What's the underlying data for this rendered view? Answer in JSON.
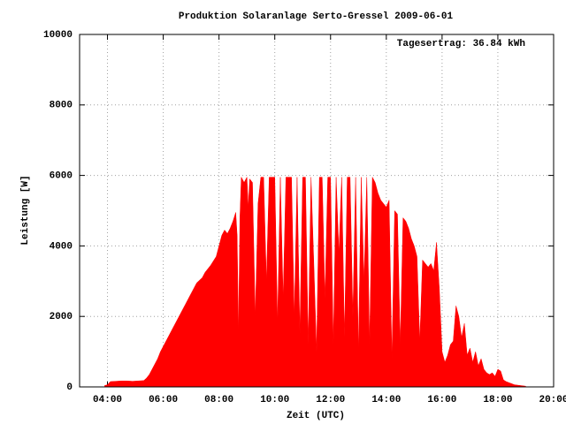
{
  "chart_data": {
    "type": "area",
    "title": "Produktion Solaranlage Serto-Gressel 2009-06-01",
    "annotation": "Tagesertrag: 36.84 kWh",
    "x_label": "Zeit (UTC)",
    "y_label": "Leistung [W]",
    "color": "#ff0000",
    "grid": true,
    "xlim": [
      3,
      20
    ],
    "ylim": [
      0,
      10000
    ],
    "xticks": [
      {
        "value": 4,
        "label": "04:00"
      },
      {
        "value": 6,
        "label": "06:00"
      },
      {
        "value": 8,
        "label": "08:00"
      },
      {
        "value": 10,
        "label": "10:00"
      },
      {
        "value": 12,
        "label": "12:00"
      },
      {
        "value": 14,
        "label": "14:00"
      },
      {
        "value": 16,
        "label": "16:00"
      },
      {
        "value": 18,
        "label": "18:00"
      },
      {
        "value": 20,
        "label": "20:00"
      }
    ],
    "yticks": [
      0,
      2000,
      4000,
      6000,
      8000,
      10000
    ],
    "x": [
      3.9,
      4.0,
      4.1,
      4.3,
      4.5,
      4.7,
      4.9,
      5.1,
      5.3,
      5.4,
      5.5,
      5.6,
      5.7,
      5.8,
      5.9,
      6.0,
      6.2,
      6.4,
      6.6,
      6.8,
      7.0,
      7.2,
      7.4,
      7.5,
      7.7,
      7.9,
      8.0,
      8.1,
      8.2,
      8.3,
      8.4,
      8.5,
      8.6,
      8.65,
      8.7,
      8.75,
      8.8,
      8.9,
      9.0,
      9.05,
      9.1,
      9.2,
      9.3,
      9.4,
      9.5,
      9.6,
      9.7,
      9.8,
      9.9,
      10.0,
      10.1,
      10.2,
      10.3,
      10.4,
      10.5,
      10.6,
      10.7,
      10.8,
      10.9,
      11.0,
      11.1,
      11.2,
      11.3,
      11.4,
      11.5,
      11.6,
      11.7,
      11.8,
      11.9,
      12.0,
      12.1,
      12.2,
      12.3,
      12.4,
      12.5,
      12.6,
      12.7,
      12.8,
      12.9,
      13.0,
      13.1,
      13.2,
      13.3,
      13.4,
      13.5,
      13.6,
      13.7,
      13.8,
      13.9,
      14.0,
      14.1,
      14.2,
      14.3,
      14.4,
      14.5,
      14.6,
      14.7,
      14.8,
      14.9,
      15.0,
      15.1,
      15.2,
      15.3,
      15.4,
      15.5,
      15.6,
      15.7,
      15.8,
      15.9,
      16.0,
      16.1,
      16.2,
      16.3,
      16.4,
      16.5,
      16.6,
      16.7,
      16.8,
      16.9,
      17.0,
      17.1,
      17.2,
      17.3,
      17.4,
      17.5,
      17.6,
      17.7,
      17.8,
      17.9,
      18.0,
      18.1,
      18.2,
      18.3,
      18.4,
      18.6,
      18.8,
      19.0
    ],
    "values": [
      40,
      60,
      150,
      160,
      170,
      170,
      160,
      170,
      180,
      250,
      350,
      500,
      650,
      800,
      1000,
      1150,
      1450,
      1750,
      2050,
      2350,
      2650,
      2950,
      3100,
      3250,
      3450,
      3700,
      4000,
      4300,
      4450,
      4350,
      4500,
      4700,
      4950,
      4300,
      1500,
      4800,
      5950,
      5800,
      5950,
      5100,
      5900,
      5800,
      2000,
      5200,
      5950,
      5950,
      3000,
      5950,
      5950,
      5950,
      1800,
      5950,
      2500,
      5950,
      5950,
      5950,
      2000,
      5950,
      1500,
      5950,
      5950,
      1200,
      5950,
      3500,
      1000,
      5950,
      5950,
      2500,
      5950,
      5950,
      1200,
      5950,
      3800,
      5950,
      1400,
      5950,
      5950,
      2000,
      5950,
      1000,
      5950,
      3000,
      5950,
      1200,
      5950,
      5800,
      5500,
      5300,
      5200,
      5100,
      5300,
      800,
      5000,
      4900,
      1200,
      4800,
      4700,
      4500,
      4200,
      4000,
      3700,
      1300,
      3600,
      3500,
      3400,
      3500,
      3300,
      4100,
      2800,
      1000,
      700,
      900,
      1200,
      1300,
      2300,
      2000,
      1400,
      1800,
      900,
      1100,
      700,
      1000,
      600,
      800,
      500,
      400,
      350,
      400,
      300,
      500,
      450,
      200,
      150,
      120,
      60,
      40,
      20
    ]
  }
}
